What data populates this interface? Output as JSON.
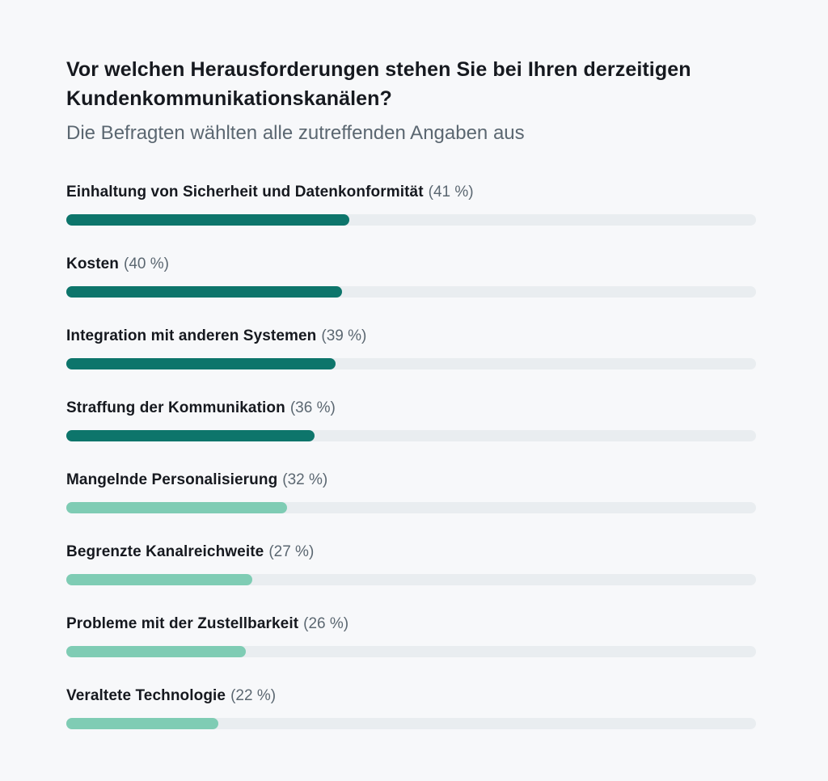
{
  "page": {
    "background_color": "#f7f8fa"
  },
  "header": {
    "title": "Vor welchen Herausforderungen stehen Sie bei Ihren derzeitigen Kundenkommunikationskanälen?",
    "subtitle": "Die Befragten wählten alle zutreffenden Angaben aus"
  },
  "chart_data": {
    "type": "bar",
    "orientation": "horizontal",
    "title": "Vor welchen Herausforderungen stehen Sie bei Ihren derzeitigen Kundenkommunikationskanälen?",
    "subtitle": "Die Befragten wählten alle zutreffenden Angaben aus",
    "categories": [
      "Einhaltung von Sicherheit und Datenkonformität",
      "Kosten",
      "Integration mit anderen Systemen",
      "Straffung der Kommunikation",
      "Mangelnde Personalisierung",
      "Begrenzte Kanalreichweite",
      "Probleme mit der Zustellbarkeit",
      "Veraltete Technologie"
    ],
    "values": [
      41,
      40,
      39,
      36,
      32,
      27,
      26,
      22
    ],
    "value_labels": [
      "(41 %)",
      "(40 %)",
      "(39 %)",
      "(36 %)",
      "(32 %)",
      "(27 %)",
      "(26 %)",
      "(22 %)"
    ],
    "bar_colors": [
      "#0d756b",
      "#0d756b",
      "#0d756b",
      "#0d756b",
      "#7fccb4",
      "#7fccb4",
      "#7fccb4",
      "#7fccb4"
    ],
    "track_color": "#e9edf0",
    "xlim": [
      0,
      100
    ],
    "grid": false,
    "legend": false,
    "data_labels_position": "after-category-label"
  },
  "colors": {
    "dark_teal": "#0d756b",
    "mint": "#7fccb4",
    "track_gray": "#e9edf0",
    "text_dark": "#16191f",
    "text_gray": "#5b6771",
    "background": "#f7f8fa"
  }
}
